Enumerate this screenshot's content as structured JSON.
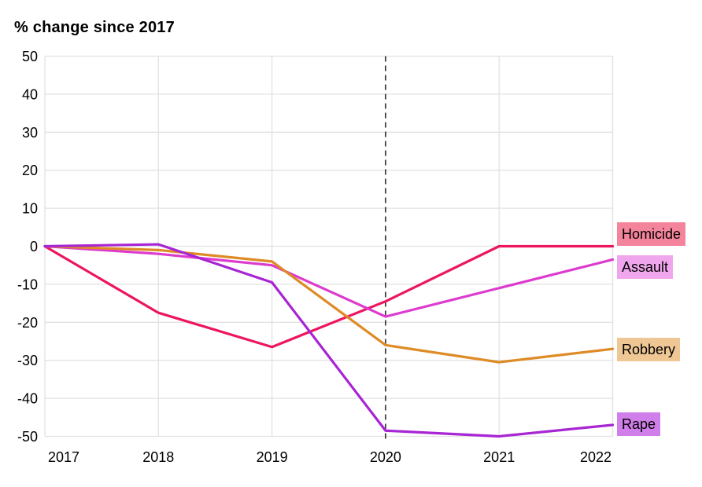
{
  "title": "% change since 2017",
  "chart_data": {
    "type": "line",
    "x": [
      2017,
      2018,
      2019,
      2020,
      2021,
      2022
    ],
    "series": [
      {
        "name": "Homicide",
        "values": [
          0,
          -17.5,
          -26.5,
          -14.5,
          0,
          0
        ],
        "line_color": "#ED155F",
        "label_bg": "#F4849C"
      },
      {
        "name": "Assault",
        "values": [
          0,
          -2,
          -5,
          -18.5,
          -11,
          -3.5
        ],
        "line_color": "#DC3BCE",
        "label_bg": "#F0A6EC"
      },
      {
        "name": "Robbery",
        "values": [
          0,
          -1,
          -4,
          -26,
          -30.5,
          -27
        ],
        "line_color": "#DE8B26",
        "label_bg": "#EFC794"
      },
      {
        "name": "Rape",
        "values": [
          0,
          0.5,
          -9.5,
          -48.5,
          -50,
          -47
        ],
        "line_color": "#A825D4",
        "label_bg": "#D07EEA"
      }
    ],
    "title": "% change since 2017",
    "xlabel": "",
    "ylabel": "",
    "ylim": [
      -50,
      50
    ],
    "yticks": [
      50,
      40,
      30,
      20,
      10,
      0,
      -10,
      -20,
      -30,
      -40,
      -50
    ],
    "grid": true,
    "legend_position": "right-edge-labels",
    "annotations": [
      {
        "type": "vertical-dashed-line",
        "x": 2020
      }
    ]
  },
  "colors": {
    "gridline": "#e2e2e2",
    "dashed_marker": "#2a2a2a",
    "axis_text": "#000000",
    "background": "#ffffff"
  }
}
